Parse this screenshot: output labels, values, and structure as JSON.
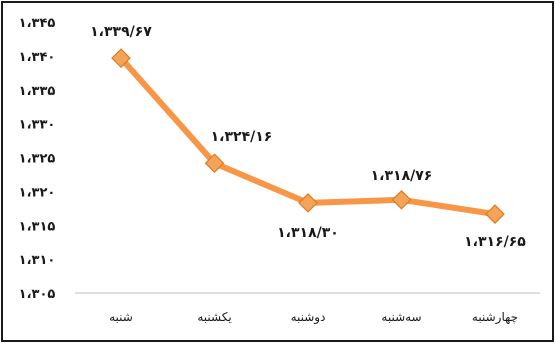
{
  "chart_data": {
    "type": "line",
    "categories": [
      "شنبه",
      "یکشنبه",
      "دوشنبه",
      "سه‌شنبه",
      "چهارشنبه"
    ],
    "values": [
      1339.67,
      1324.16,
      1318.3,
      1318.76,
      1316.65
    ],
    "data_labels": [
      "۱،۳۳۹/۶۷",
      "۱،۳۲۴/۱۶",
      "۱،۳۱۸/۳۰",
      "۱،۳۱۸/۷۶",
      "۱،۳۱۶/۶۵"
    ],
    "y_ticks": [
      {
        "value": 1305,
        "label": "۱،۳۰۵"
      },
      {
        "value": 1310,
        "label": "۱،۳۱۰"
      },
      {
        "value": 1315,
        "label": "۱،۳۱۵"
      },
      {
        "value": 1320,
        "label": "۱،۳۲۰"
      },
      {
        "value": 1325,
        "label": "۱،۳۲۵"
      },
      {
        "value": 1330,
        "label": "۱،۳۳۰"
      },
      {
        "value": 1335,
        "label": "۱،۳۳۵"
      },
      {
        "value": 1340,
        "label": "۱،۳۴۰"
      },
      {
        "value": 1345,
        "label": "۱،۳۴۵"
      }
    ],
    "ylim": [
      1305,
      1345
    ],
    "grid": false,
    "legend": "none",
    "title": "",
    "xlabel": "",
    "ylabel": "",
    "colors": {
      "line": "#f79646",
      "marker_fill": "#f4a45a",
      "marker_stroke": "#e07b1f",
      "frame": "#1a1a1a",
      "axis": "#bfbfbf"
    }
  }
}
